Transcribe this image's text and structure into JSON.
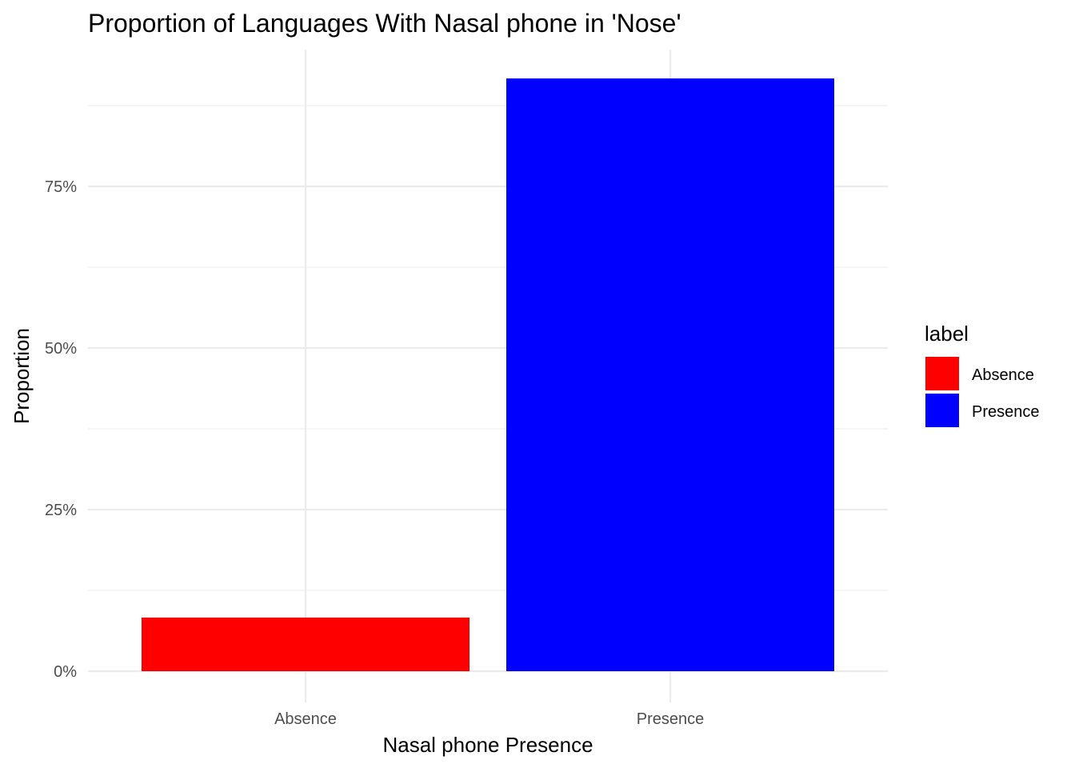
{
  "chart_data": {
    "type": "bar",
    "title": "Proportion of Languages With Nasal phone in 'Nose'",
    "xlabel": "Nasal phone Presence",
    "ylabel": "Proportion",
    "categories": [
      "Absence",
      "Presence"
    ],
    "values": [
      0.083,
      0.917
    ],
    "colors": [
      "#ff0000",
      "#0000ff"
    ],
    "ylim": [
      0,
      0.96
    ],
    "yticks": [
      0,
      0.25,
      0.5,
      0.75
    ],
    "ytick_labels": [
      "0%",
      "25%",
      "50%",
      "75%"
    ],
    "grid": true,
    "legend": {
      "title": "label",
      "position": "right",
      "entries": [
        {
          "label": "Absence",
          "color": "#ff0000"
        },
        {
          "label": "Presence",
          "color": "#0000ff"
        }
      ]
    }
  }
}
